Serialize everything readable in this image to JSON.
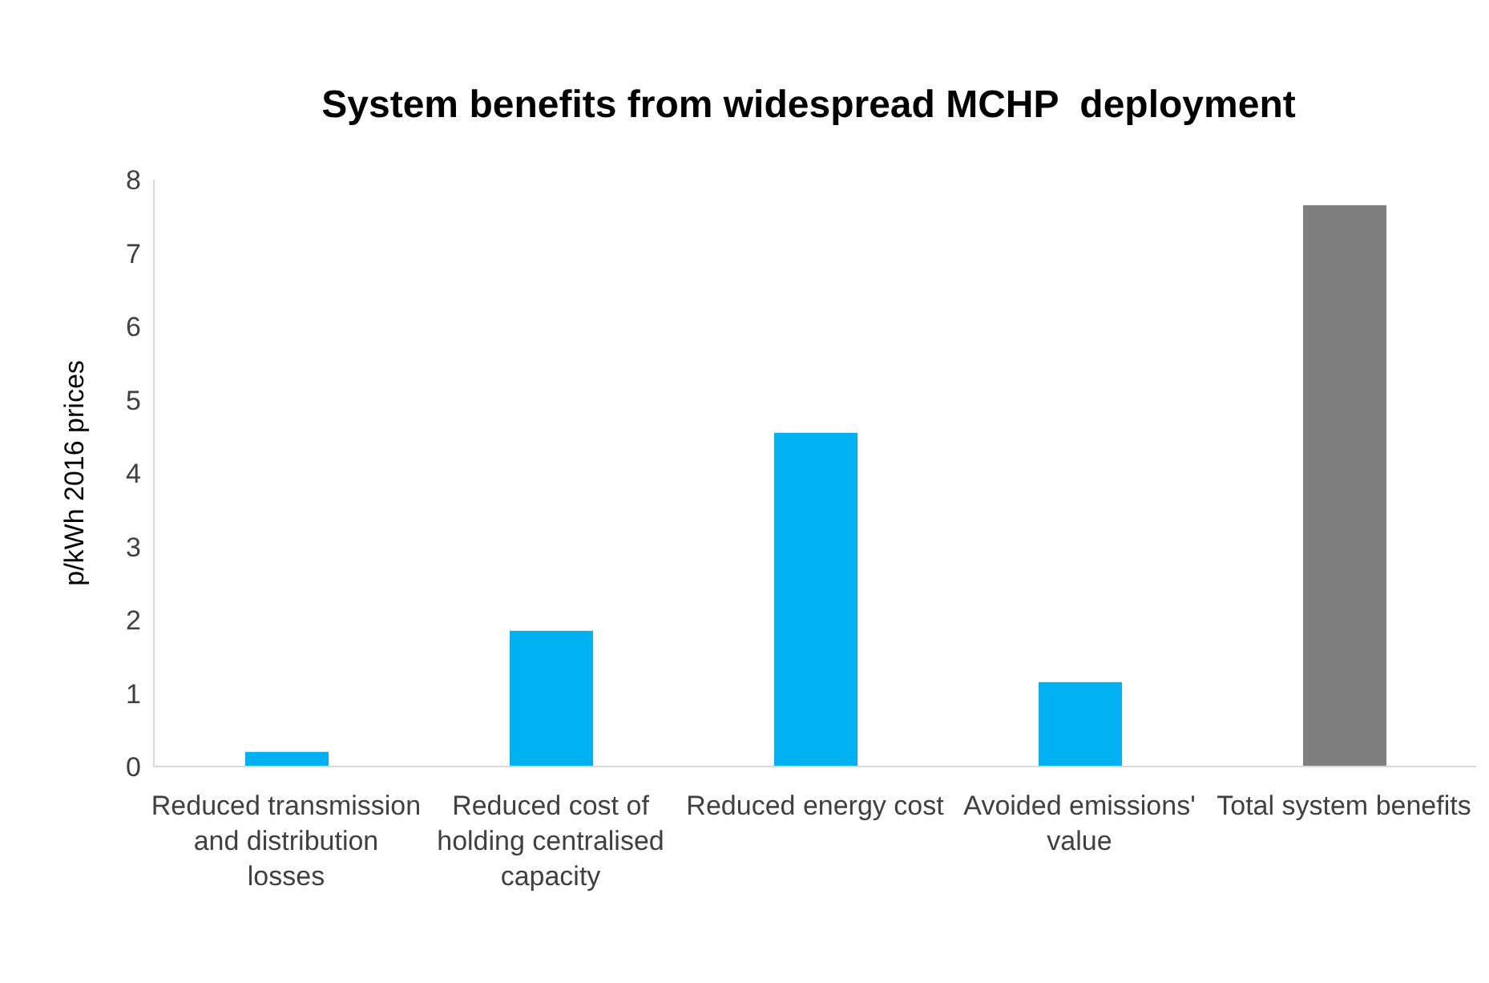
{
  "chart_data": {
    "type": "bar",
    "title": "System benefits from widespread MCHP  deployment",
    "ylabel": "p/kWh 2016 prices",
    "categories": [
      "Reduced transmission and distribution losses",
      "Reduced cost of holding centralised capacity",
      "Reduced energy cost",
      "Avoided emissions' value",
      "Total system benefits"
    ],
    "values": [
      0.2,
      1.85,
      4.55,
      1.15,
      7.65
    ],
    "colors": [
      "#00b0f0",
      "#00b0f0",
      "#00b0f0",
      "#00b0f0",
      "#7f7f7f"
    ],
    "ylim": [
      0,
      8
    ],
    "yticks": [
      0,
      1,
      2,
      3,
      4,
      5,
      6,
      7,
      8
    ],
    "grid": false,
    "legend": false
  }
}
